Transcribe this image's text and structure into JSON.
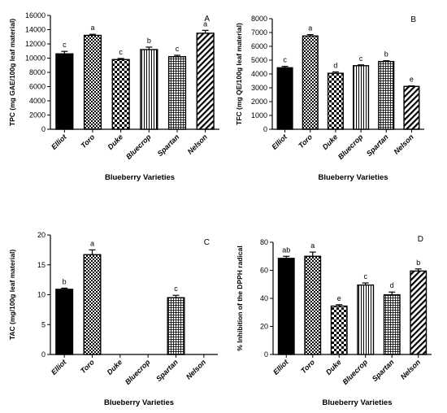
{
  "chart_data": [
    {
      "type": "bar",
      "panel": "A",
      "categories": [
        "Elliot",
        "Toro",
        "Duke",
        "Bluecrop",
        "Spartan",
        "Nelson"
      ],
      "values": [
        10600,
        13200,
        9800,
        11200,
        10200,
        13500
      ],
      "errors": [
        350,
        150,
        150,
        350,
        200,
        400
      ],
      "significance": [
        "c",
        "a",
        "c",
        "b",
        "c",
        "a"
      ],
      "ylabel": "TPC (mg GAE/100g leaf material)",
      "xlabel": "Blueberry Varieties",
      "ylim": [
        0,
        16000
      ],
      "yticks": [
        0,
        2000,
        4000,
        6000,
        8000,
        10000,
        12000,
        14000,
        16000
      ]
    },
    {
      "type": "bar",
      "panel": "B",
      "categories": [
        "Elliot",
        "Toro",
        "Duke",
        "Bluecrop",
        "Spartan",
        "Nelson"
      ],
      "values": [
        4450,
        6750,
        4050,
        4600,
        4900,
        3100
      ],
      "errors": [
        100,
        100,
        100,
        60,
        60,
        40
      ],
      "significance": [
        "c",
        "a",
        "d",
        "c",
        "b",
        "e"
      ],
      "ylabel": "TFC (mg QE/100g leaf material)",
      "xlabel": "Blueberry Varieties",
      "ylim": [
        0,
        8000
      ],
      "yticks": [
        0,
        1000,
        2000,
        3000,
        4000,
        5000,
        6000,
        7000,
        8000
      ]
    },
    {
      "type": "bar",
      "panel": "C",
      "categories": [
        "Elliot",
        "Toro",
        "Duke",
        "Bluecrop",
        "Spartan",
        "Nelson"
      ],
      "values": [
        10.9,
        16.7,
        0,
        0,
        9.5,
        0
      ],
      "errors": [
        0.2,
        0.8,
        0,
        0,
        0.4,
        0
      ],
      "significance": [
        "b",
        "a",
        "",
        "",
        "c",
        ""
      ],
      "ylabel": "TAC (mg/100g leaf material)",
      "xlabel": "Blueberry Varieties",
      "ylim": [
        0,
        20
      ],
      "yticks": [
        0,
        5,
        10,
        15,
        20
      ]
    },
    {
      "type": "bar",
      "panel": "D",
      "categories": [
        "Elliot",
        "Toro",
        "Duke",
        "Bluecrop",
        "Spartan",
        "Nelson"
      ],
      "values": [
        68.5,
        70.0,
        34.5,
        49.5,
        42.5,
        59.5
      ],
      "errors": [
        1.5,
        3.0,
        1.0,
        1.5,
        2.0,
        1.5
      ],
      "significance": [
        "ab",
        "a",
        "e",
        "c",
        "d",
        "b"
      ],
      "ylabel": "% Inhibition of the DPPH radical",
      "xlabel": "Blueberry Varieties",
      "ylim": [
        0,
        80
      ],
      "yticks": [
        0,
        20,
        40,
        60,
        80
      ]
    }
  ],
  "colors": {
    "ink": "#000000",
    "paper": "#ffffff"
  }
}
